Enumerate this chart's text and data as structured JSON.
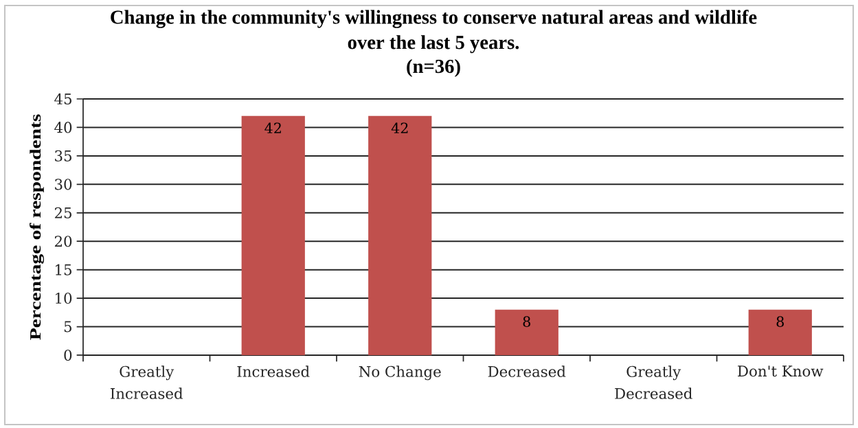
{
  "chart_data": {
    "type": "bar",
    "title": "Change in the community's willingness to conserve natural areas and wildlife over the last 5 years.",
    "subtitle": "(n=36)",
    "ylabel": "Percentage of respondents",
    "categories": [
      "Greatly Increased",
      "Increased",
      "No Change",
      "Decreased",
      "Greatly Decreased",
      "Don't Know"
    ],
    "values": [
      0,
      42,
      42,
      8,
      0,
      8
    ],
    "value_labels": [
      null,
      "42",
      "42",
      "8",
      null,
      "8"
    ],
    "color": "#c0504d",
    "ylim": [
      0,
      45
    ],
    "yticks": [
      0,
      5,
      10,
      15,
      20,
      25,
      30,
      35,
      40,
      45
    ],
    "grid": "y"
  }
}
